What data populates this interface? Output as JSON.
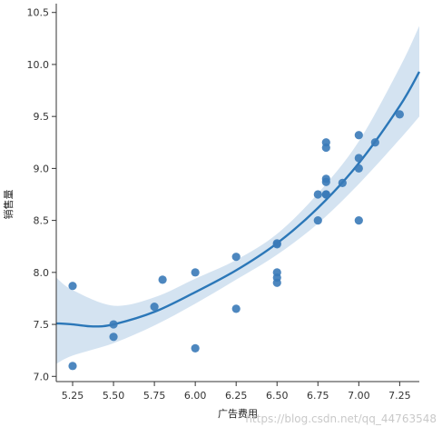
{
  "chart_data": {
    "type": "scatter",
    "xlabel": "广告费用",
    "ylabel": "销售量",
    "xlim": [
      5.15,
      7.37
    ],
    "ylim": [
      6.95,
      10.55
    ],
    "x_ticks": [
      5.25,
      5.5,
      5.75,
      6.0,
      6.25,
      6.5,
      6.75,
      7.0,
      7.25
    ],
    "x_tick_labels": [
      "5.25",
      "5.50",
      "5.75",
      "6.00",
      "6.25",
      "6.50",
      "6.75",
      "7.00",
      "7.25"
    ],
    "y_ticks": [
      7.0,
      7.5,
      8.0,
      8.5,
      9.0,
      9.5,
      10.0,
      10.5
    ],
    "y_tick_labels": [
      "7.0",
      "7.5",
      "8.0",
      "8.5",
      "9.0",
      "9.5",
      "10.0",
      "10.5"
    ],
    "grid": false,
    "points": {
      "x": [
        5.25,
        5.25,
        5.5,
        5.5,
        5.75,
        5.8,
        6.0,
        6.0,
        6.25,
        6.25,
        6.5,
        6.5,
        6.5,
        6.5,
        6.5,
        6.75,
        6.75,
        6.8,
        6.8,
        6.8,
        6.8,
        6.8,
        6.8,
        6.9,
        7.0,
        7.0,
        7.0,
        7.0,
        7.1,
        7.25
      ],
      "y": [
        7.87,
        7.1,
        7.5,
        7.38,
        7.67,
        7.93,
        8.0,
        7.27,
        8.15,
        7.65,
        8.27,
        8.0,
        7.95,
        7.9,
        8.28,
        8.5,
        8.75,
        9.25,
        9.2,
        8.9,
        8.87,
        8.75,
        8.75,
        8.86,
        9.32,
        9.1,
        9.0,
        8.5,
        9.25,
        9.52
      ]
    },
    "fit_line": {
      "x": [
        5.15,
        5.25,
        5.375,
        5.5,
        5.75,
        6.0,
        6.25,
        6.5,
        6.75,
        7.0,
        7.25,
        7.37
      ],
      "y": [
        7.51,
        7.5,
        7.48,
        7.5,
        7.62,
        7.81,
        8.02,
        8.28,
        8.62,
        9.05,
        9.6,
        9.93
      ]
    },
    "confidence_band": {
      "x": [
        5.15,
        5.25,
        5.5,
        5.75,
        6.0,
        6.25,
        6.5,
        6.75,
        7.0,
        7.25,
        7.37
      ],
      "lower": [
        7.12,
        7.2,
        7.32,
        7.49,
        7.7,
        7.93,
        8.17,
        8.47,
        8.85,
        9.28,
        9.5
      ],
      "upper": [
        7.95,
        7.83,
        7.68,
        7.76,
        7.94,
        8.12,
        8.37,
        8.76,
        9.26,
        9.97,
        10.37
      ]
    },
    "colors": {
      "points": "#3a7ab8",
      "line": "#2b77b8",
      "band": "#c6d9ec"
    }
  },
  "watermark": "https://blog.csdn.net/qq_44763548"
}
